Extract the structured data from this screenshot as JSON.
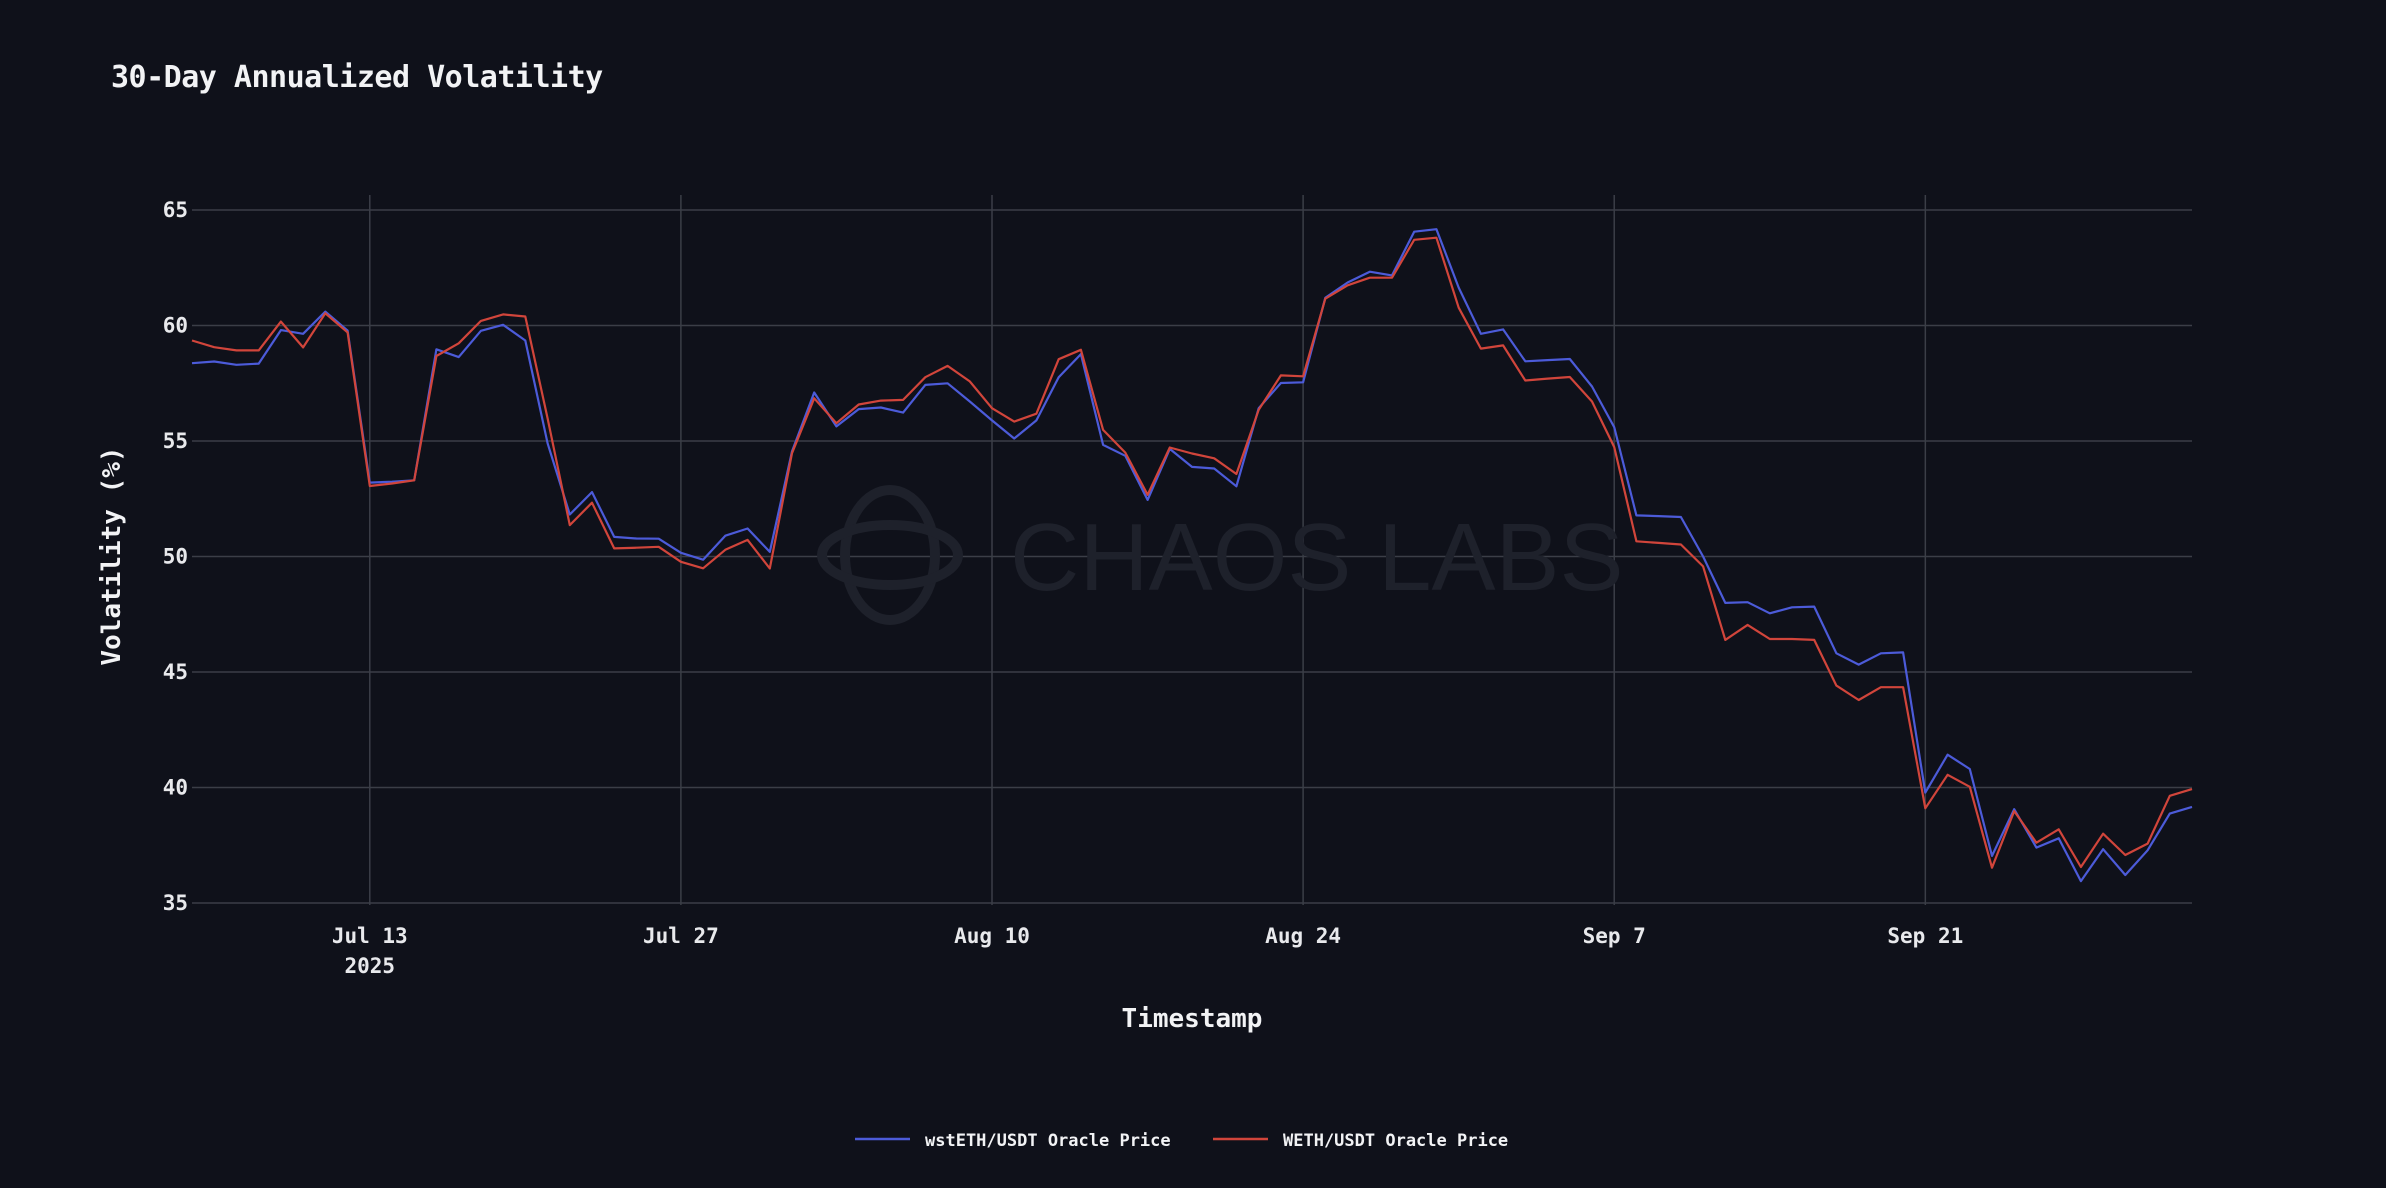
{
  "chart_data": {
    "type": "line",
    "title": "30-Day Annualized Volatility",
    "xlabel": "Timestamp",
    "ylabel": "Volatility (%)",
    "x_start": "2025-07-05",
    "x_step_days": 1,
    "xlim_days": [
      0,
      90
    ],
    "ylim": [
      35,
      65
    ],
    "yticks": [
      35,
      40,
      45,
      50,
      55,
      60,
      65
    ],
    "xticks": [
      {
        "day": 8,
        "label": "Jul 13",
        "sublabel": "2025"
      },
      {
        "day": 22,
        "label": "Jul 27"
      },
      {
        "day": 36,
        "label": "Aug 10"
      },
      {
        "day": 50,
        "label": "Aug 24"
      },
      {
        "day": 64,
        "label": "Sep 7"
      },
      {
        "day": 78,
        "label": "Sep 21"
      }
    ],
    "grid": true,
    "legend_position": "bottom-center",
    "watermark": "CHAOS LABS",
    "series": [
      {
        "name": "wstETH/USDT Oracle Price",
        "color": "#4c5bd9",
        "values": [
          58.37,
          58.44,
          58.3,
          58.35,
          59.8,
          59.64,
          60.6,
          59.78,
          53.2,
          53.24,
          53.3,
          58.97,
          58.63,
          59.77,
          60.03,
          59.35,
          54.9,
          51.82,
          52.79,
          50.85,
          50.78,
          50.77,
          50.16,
          49.86,
          50.9,
          51.21,
          50.2,
          54.55,
          57.1,
          55.63,
          56.38,
          56.45,
          56.23,
          57.43,
          57.5,
          56.71,
          55.89,
          55.11,
          55.89,
          57.76,
          58.76,
          54.83,
          54.36,
          52.45,
          54.66,
          53.88,
          53.81,
          53.04,
          56.42,
          57.51,
          57.54,
          61.2,
          61.86,
          62.33,
          62.17,
          64.06,
          64.17,
          61.64,
          59.64,
          59.83,
          58.45,
          58.5,
          58.55,
          57.36,
          55.6,
          51.78,
          51.75,
          51.71,
          50.0,
          47.99,
          48.02,
          47.54,
          47.8,
          47.83,
          45.81,
          45.32,
          45.81,
          45.85,
          39.78,
          41.42,
          40.8,
          37.04,
          39.06,
          37.4,
          37.8,
          35.95,
          37.33,
          36.21,
          37.28,
          38.87,
          39.16
        ]
      },
      {
        "name": "WETH/USDT Oracle Price",
        "color": "#d1453b",
        "values": [
          59.35,
          59.06,
          58.92,
          58.92,
          60.17,
          59.05,
          60.53,
          59.7,
          53.05,
          53.16,
          53.3,
          58.68,
          59.23,
          60.2,
          60.48,
          60.39,
          55.98,
          51.36,
          52.33,
          50.35,
          50.38,
          50.42,
          49.77,
          49.49,
          50.29,
          50.72,
          49.48,
          54.47,
          56.85,
          55.77,
          56.58,
          56.75,
          56.78,
          57.76,
          58.25,
          57.58,
          56.42,
          55.84,
          56.18,
          58.54,
          58.95,
          55.48,
          54.5,
          52.67,
          54.72,
          54.46,
          54.25,
          53.57,
          56.35,
          57.84,
          57.8,
          61.16,
          61.74,
          62.07,
          62.07,
          63.71,
          63.8,
          60.77,
          59.0,
          59.14,
          57.62,
          57.7,
          57.77,
          56.71,
          54.74,
          50.66,
          50.59,
          50.52,
          49.57,
          46.39,
          47.04,
          46.43,
          46.43,
          46.39,
          44.41,
          43.79,
          44.34,
          44.34,
          39.1,
          40.55,
          40.03,
          36.53,
          38.98,
          37.61,
          38.19,
          36.56,
          38.0,
          37.08,
          37.57,
          39.64,
          39.93
        ]
      }
    ]
  }
}
